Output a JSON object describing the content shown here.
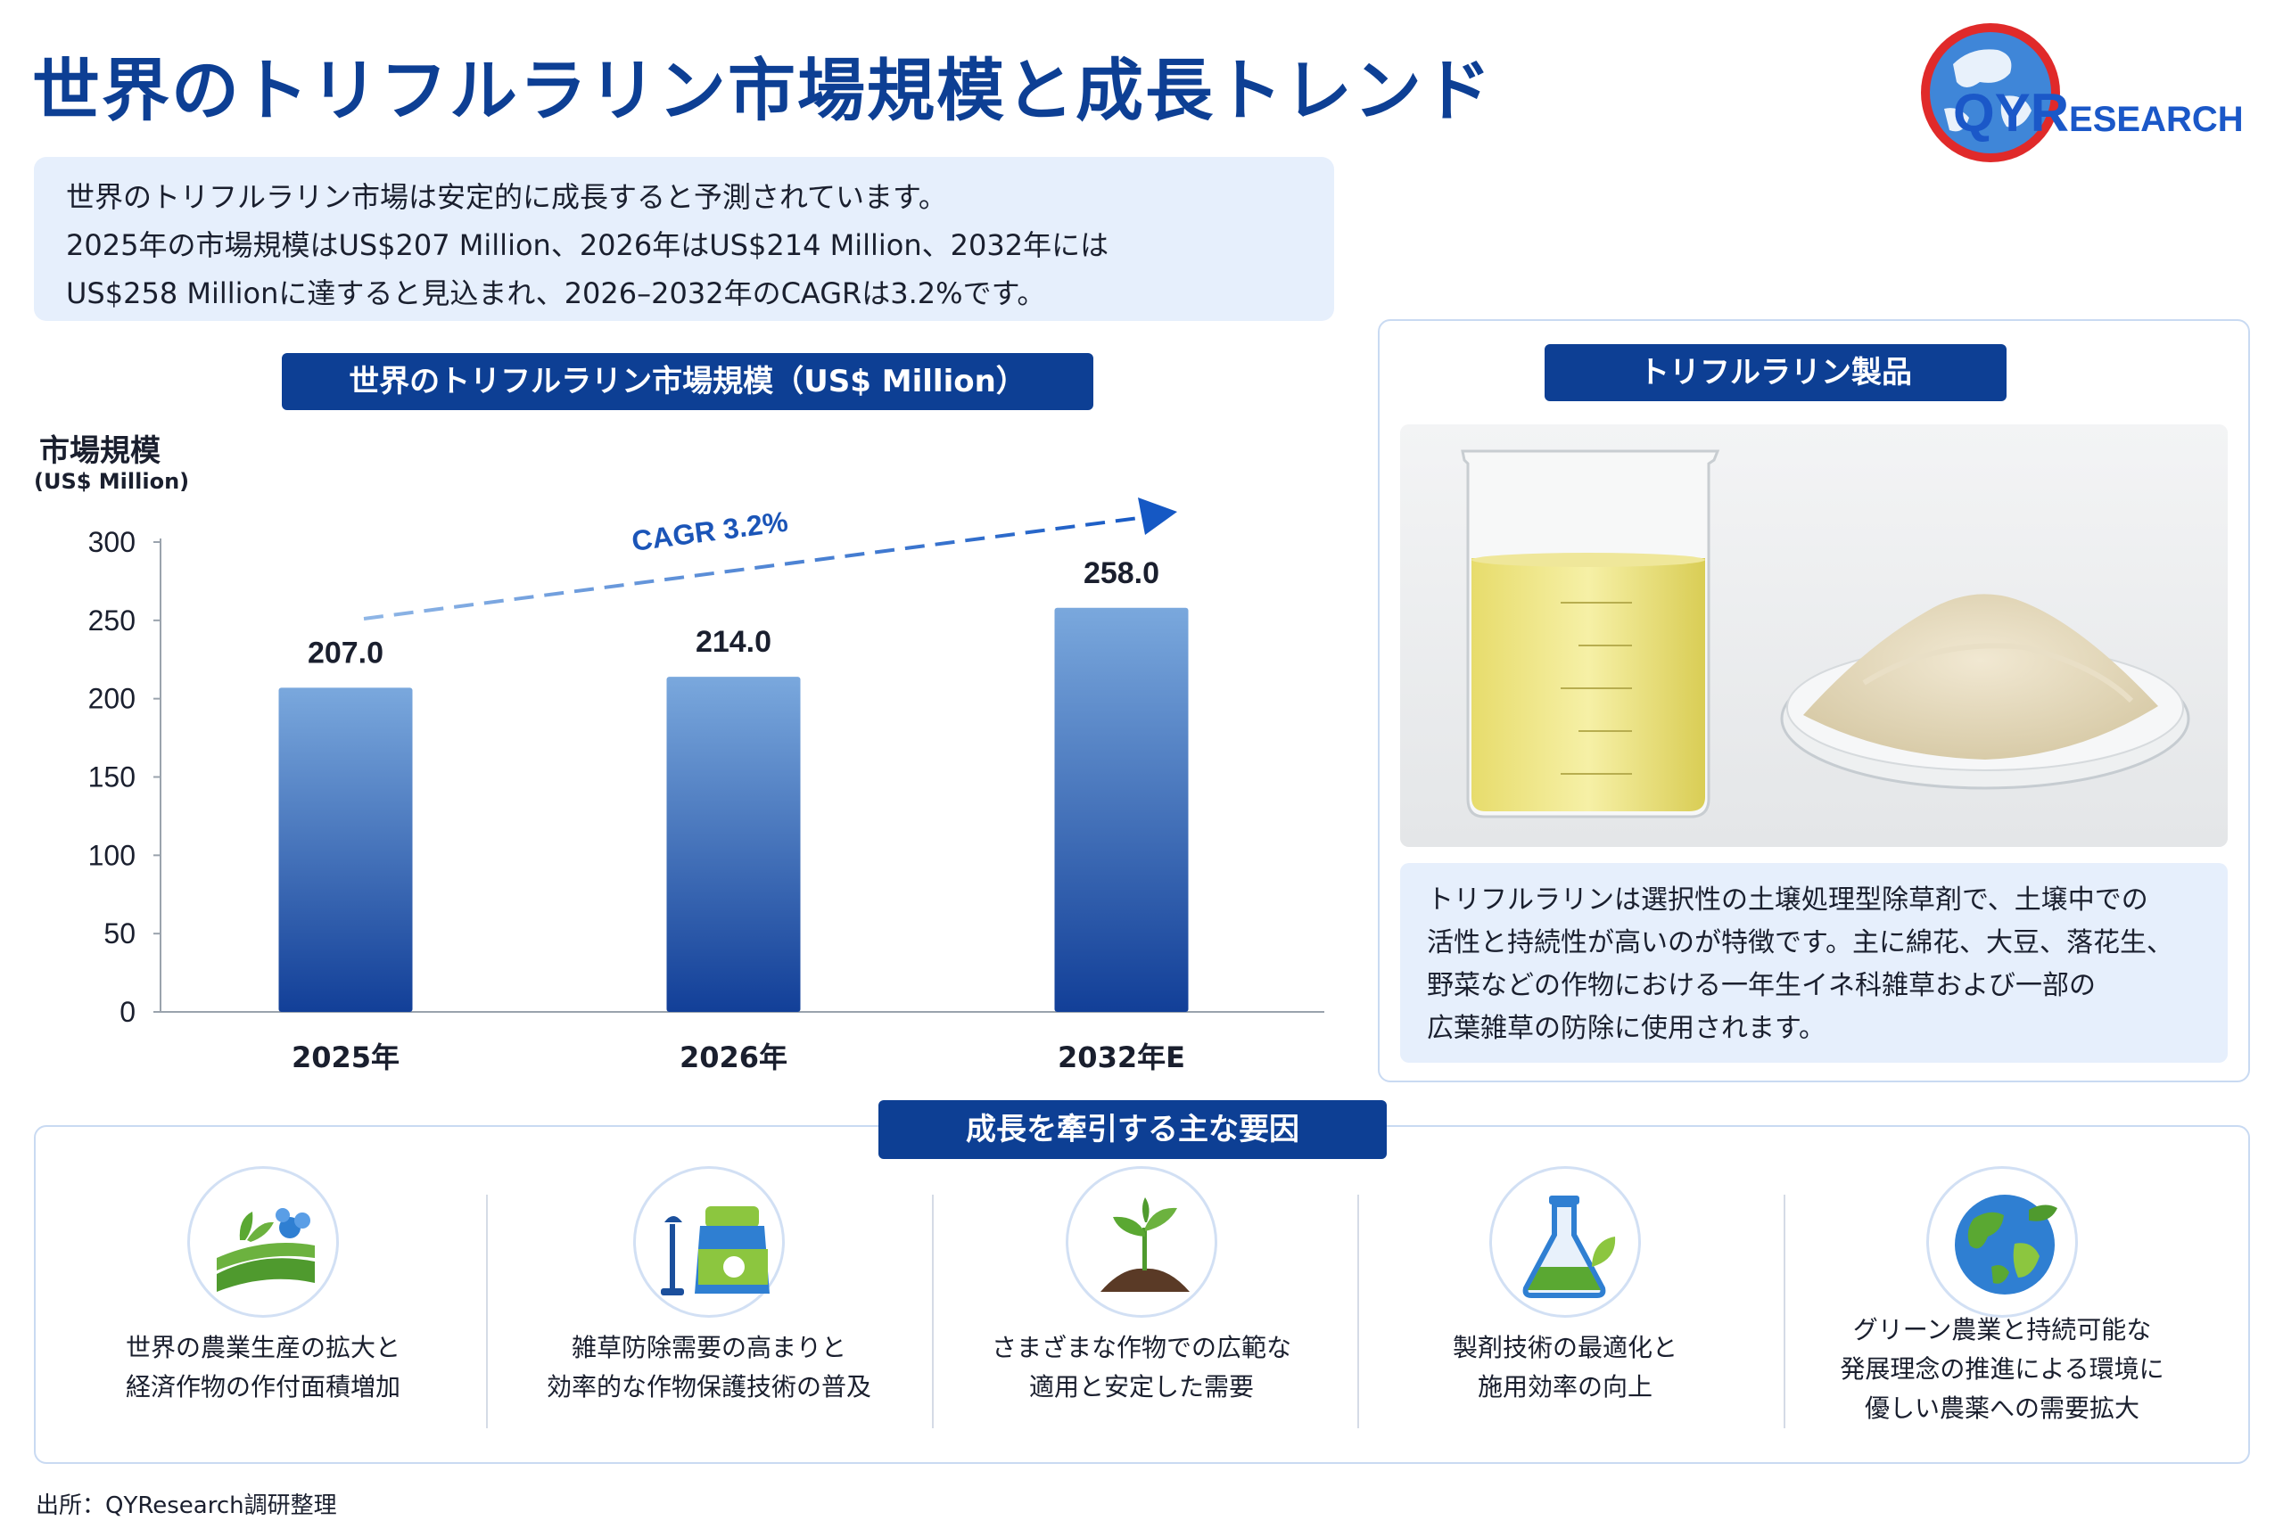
{
  "header": {
    "title": "世界のトリフルラリン市場規模と成長トレンド",
    "logo_text_qy": "QYR",
    "logo_text_rest": "ESEARCH"
  },
  "summary": {
    "line1": "世界のトリフルラリン市場は安定的に成長すると予測されています。",
    "line2": "2025年の市場規模はUS$207 Million、2026年はUS$214 Million、2032年には",
    "line3": "US$258 Millionに達すると見込まれ、2026–2032年のCAGRは3.2%です。"
  },
  "chart_section": {
    "title": "世界のトリフルラリン市場規模（US$ Million）",
    "ylabel": "市場規模",
    "ylabel_unit": "(US$ Million)"
  },
  "chart_data": {
    "type": "bar",
    "categories": [
      "2025年",
      "2026年",
      "2032年E"
    ],
    "values": [
      207.0,
      214.0,
      258.0
    ],
    "value_labels": [
      "207.0",
      "214.0",
      "258.0"
    ],
    "yticks": [
      "0",
      "50",
      "100",
      "150",
      "200",
      "250",
      "300"
    ],
    "ylim": [
      0,
      300
    ],
    "annotation": "CAGR 3.2%",
    "bar_color_top": "#7aa8dd",
    "bar_color_bottom": "#123f98",
    "grid": false
  },
  "product": {
    "title": "トリフルラリン製品",
    "desc_line1": "トリフルラリンは選択性の土壌処理型除草剤で、土壌中での",
    "desc_line2": "活性と持続性が高いのが特徴です。主に綿花、大豆、落花生、",
    "desc_line3": "野菜などの作物における一年生イネ科雑草および一部の",
    "desc_line4": "広葉雑草の防除に使用されます。"
  },
  "drivers": {
    "title": "成長を牽引する主な要因",
    "items": [
      {
        "icon": "farm-field-icon",
        "line1": "世界の農業生産の拡大と",
        "line2": "経済作物の作付面積増加"
      },
      {
        "icon": "sprayer-bag-icon",
        "line1": "雑草防除需要の高まりと",
        "line2": "効率的な作物保護技術の普及"
      },
      {
        "icon": "seedling-icon",
        "line1": "さまざまな作物での広範な",
        "line2": "適用と安定した需要"
      },
      {
        "icon": "flask-leaf-icon",
        "line1": "製剤技術の最適化と",
        "line2": "施用効率の向上"
      },
      {
        "icon": "globe-leaf-icon",
        "line1": "グリーン農業と持続可能な",
        "line2": "発展理念の推進による環境に",
        "line3": "優しい農薬への需要拡大"
      }
    ]
  },
  "footer": {
    "source": "出所：QYResearch調研整理"
  },
  "colors": {
    "brand": "#0d3f94",
    "panel": "#e6effc",
    "accent_green": "#5aa832"
  }
}
